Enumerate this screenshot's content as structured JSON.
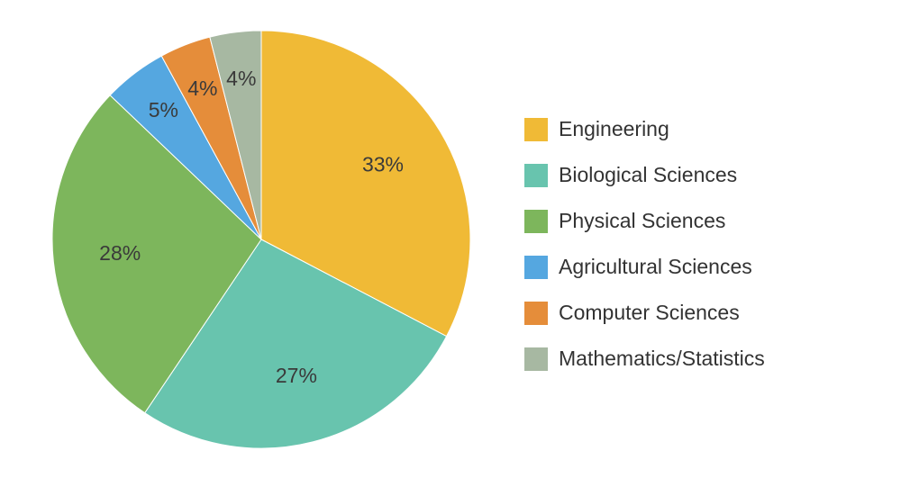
{
  "chart_data": {
    "type": "pie",
    "title": "",
    "categories": [
      "Engineering",
      "Biological Sciences",
      "Physical Sciences",
      "Agricultural Sciences",
      "Computer Sciences",
      "Mathematics/Statistics"
    ],
    "values": [
      33,
      27,
      28,
      5,
      4,
      4
    ],
    "labels": [
      "33%",
      "27%",
      "28%",
      "5%",
      "4%",
      "4%"
    ],
    "colors": [
      "#F0BA36",
      "#68C4AE",
      "#7DB65C",
      "#55A7E0",
      "#E58D3A",
      "#A7B8A2"
    ],
    "start_angle_deg": 0,
    "direction": "clockwise",
    "legend_position": "right"
  }
}
